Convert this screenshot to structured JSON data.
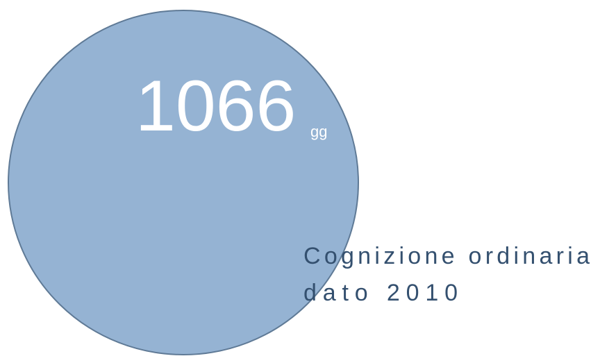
{
  "figure": {
    "value": "1066",
    "unit": "gg",
    "caption": [
      "Cognizione ordinaria",
      "dato 2010"
    ]
  }
}
